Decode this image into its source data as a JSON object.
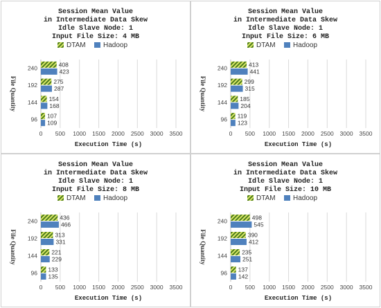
{
  "colors": {
    "dtam_fg": "#4a7a1c",
    "dtam_bg": "#dbe866",
    "hadoop": "#4f81bd",
    "grid": "#d9d9d9"
  },
  "chart_data": [
    {
      "type": "bar",
      "title": [
        "Session Mean Value",
        "in Intermediate Data Skew",
        "Idle Slave Node: 1",
        "Input File Size: 4 MB"
      ],
      "categories": [
        "240",
        "192",
        "144",
        "96"
      ],
      "series": [
        {
          "name": "DTAM",
          "values": [
            408,
            275,
            154,
            107
          ]
        },
        {
          "name": "Hadoop",
          "values": [
            423,
            287,
            168,
            109
          ]
        }
      ],
      "xlabel": "Execution Time (s)",
      "ylabel": "File Quantity",
      "xticks": [
        0,
        500,
        1000,
        1500,
        2000,
        2500,
        3000,
        3500
      ],
      "xlim": [
        0,
        3500
      ],
      "grid": true,
      "legend": "top"
    },
    {
      "type": "bar",
      "title": [
        "Session Mean Value",
        "in Intermediate Data Skew",
        "Idle Slave Node: 1",
        "Input File Size: 6 MB"
      ],
      "categories": [
        "240",
        "192",
        "144",
        "96"
      ],
      "series": [
        {
          "name": "DTAM",
          "values": [
            413,
            299,
            185,
            119
          ]
        },
        {
          "name": "Hadoop",
          "values": [
            441,
            315,
            204,
            123
          ]
        }
      ],
      "xlabel": "Execution Time (s)",
      "ylabel": "File Quantity",
      "xticks": [
        0,
        500,
        1000,
        1500,
        2000,
        2500,
        3000,
        3500
      ],
      "xlim": [
        0,
        3500
      ],
      "grid": true,
      "legend": "top"
    },
    {
      "type": "bar",
      "title": [
        "Session Mean Value",
        "in Intermediate Data Skew",
        "Idle Slave Node: 1",
        "Input File Size: 8 MB"
      ],
      "categories": [
        "240",
        "192",
        "144",
        "96"
      ],
      "series": [
        {
          "name": "DTAM",
          "values": [
            436,
            313,
            221,
            133
          ]
        },
        {
          "name": "Hadoop",
          "values": [
            466,
            331,
            229,
            135
          ]
        }
      ],
      "xlabel": "Execution Time (s)",
      "ylabel": "File Quantity",
      "xticks": [
        0,
        500,
        1000,
        1500,
        2000,
        2500,
        3000,
        3500
      ],
      "xlim": [
        0,
        3500
      ],
      "grid": true,
      "legend": "top"
    },
    {
      "type": "bar",
      "title": [
        "Session Mean Value",
        "in Intermediate Data Skew",
        "Idle Slave Node: 1",
        "Input File Size: 10 MB"
      ],
      "categories": [
        "240",
        "192",
        "144",
        "96"
      ],
      "series": [
        {
          "name": "DTAM",
          "values": [
            498,
            390,
            235,
            137
          ]
        },
        {
          "name": "Hadoop",
          "values": [
            545,
            412,
            251,
            142
          ]
        }
      ],
      "xlabel": "Execution Time (s)",
      "ylabel": "File Quantity",
      "xticks": [
        0,
        500,
        1000,
        1500,
        2000,
        2500,
        3000,
        3500
      ],
      "xlim": [
        0,
        3500
      ],
      "grid": true,
      "legend": "top"
    }
  ]
}
